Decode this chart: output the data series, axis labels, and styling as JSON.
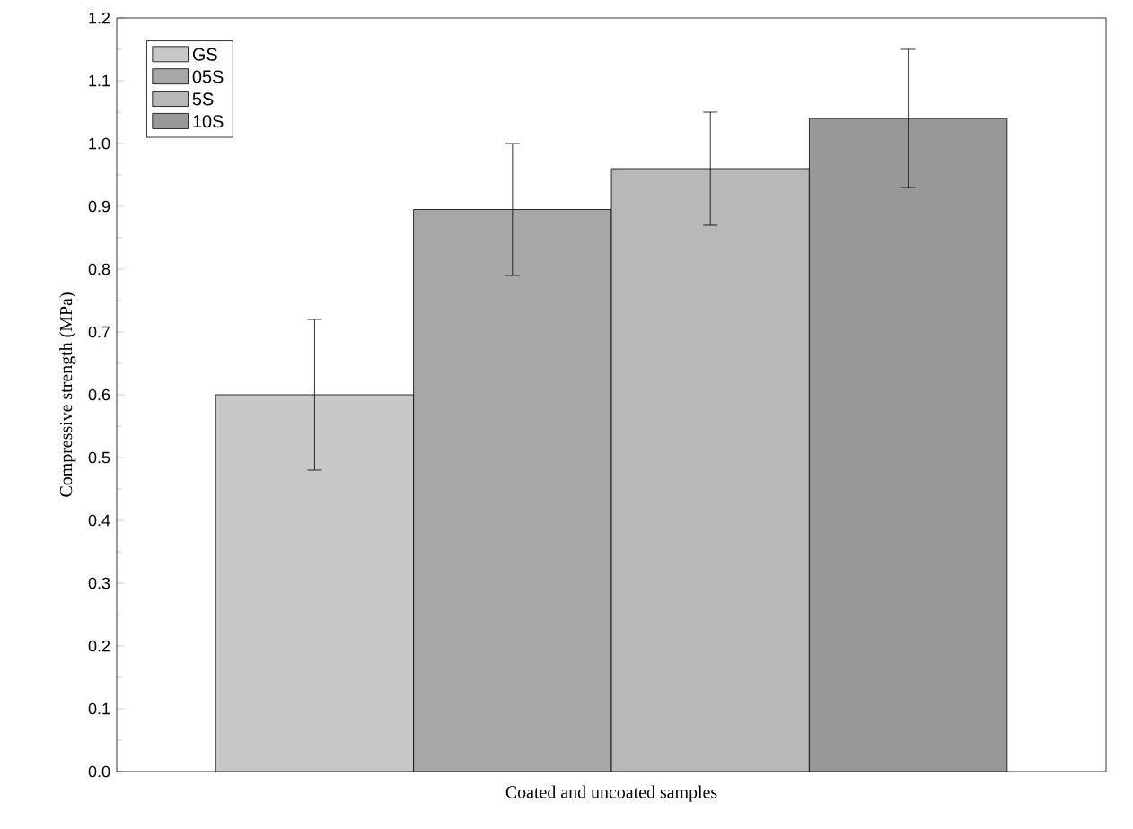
{
  "chart_data": {
    "type": "bar",
    "xlabel": "Coated and uncoated samples",
    "ylabel": "Compressive strength (MPa)",
    "categories": [
      null
    ],
    "series": [
      {
        "name": "GS",
        "color": "#c8c8c8",
        "values": [
          0.6
        ],
        "errors": [
          [
            0.48,
            0.72
          ]
        ]
      },
      {
        "name": "05S",
        "color": "#a8a8a8",
        "values": [
          0.895
        ],
        "errors": [
          [
            0.79,
            1.0
          ]
        ]
      },
      {
        "name": "5S",
        "color": "#b8b8b8",
        "values": [
          0.96
        ],
        "errors": [
          [
            0.87,
            1.05
          ]
        ]
      },
      {
        "name": "10S",
        "color": "#989898",
        "values": [
          1.04
        ],
        "errors": [
          [
            0.93,
            1.15
          ]
        ]
      }
    ],
    "ylim": [
      0,
      1.2
    ],
    "yticks": [
      {
        "value": 0,
        "label": "0.0"
      },
      0.1,
      0.2,
      0.3,
      0.4,
      0.5,
      0.6,
      0.7,
      0.8,
      0.9,
      {
        "value": 1,
        "label": "1.0"
      },
      1.1,
      1.2
    ],
    "legend": "top left"
  }
}
